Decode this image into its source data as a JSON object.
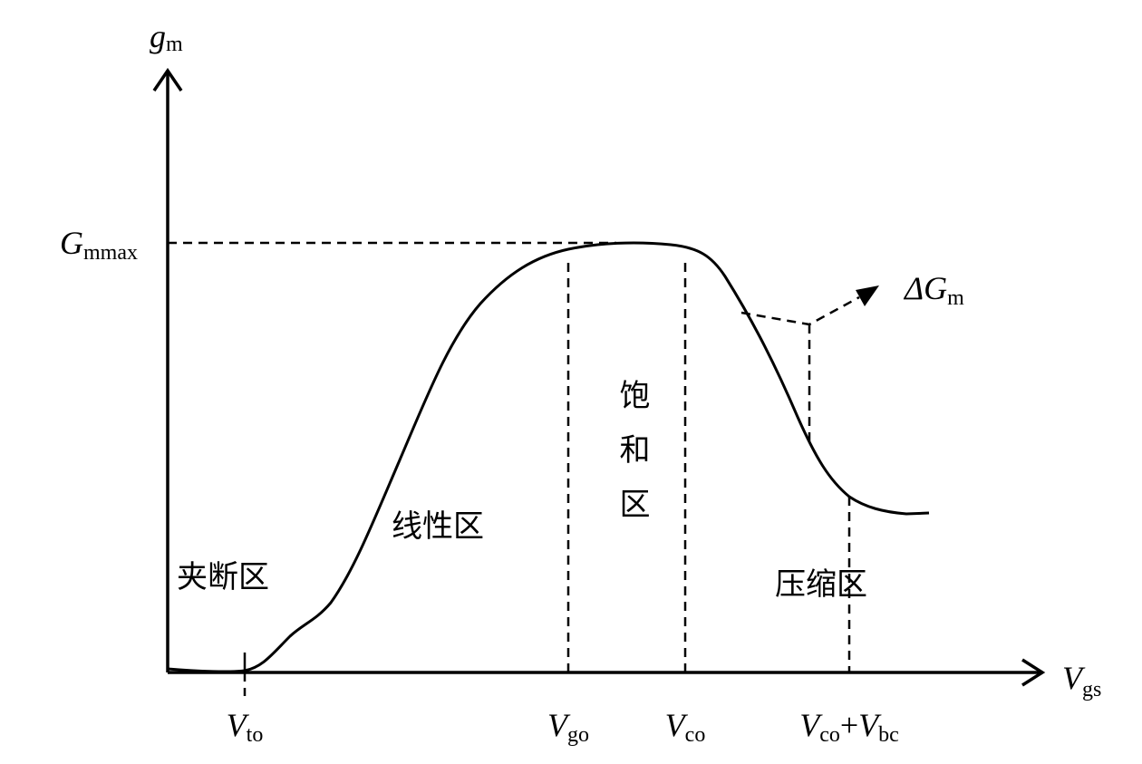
{
  "axes": {
    "y": {
      "symbol": "g",
      "subscript": "m"
    },
    "x": {
      "symbol": "V",
      "subscript": "gs"
    }
  },
  "max_label": {
    "symbol": "G",
    "subscript": "mmax"
  },
  "delta_label": {
    "symbol": "ΔG",
    "subscript": "m"
  },
  "x_marks": [
    {
      "symbol": "V",
      "subscript": "to"
    },
    {
      "symbol": "V",
      "subscript": "go"
    },
    {
      "symbol": "V",
      "subscript": "co"
    },
    {
      "symbol": "V",
      "subscript": "co",
      "operator": "+",
      "symbol2": "V",
      "subscript2": "bc"
    }
  ],
  "regions": [
    "夹断区",
    "线性区",
    "饱和区",
    "压缩区"
  ]
}
